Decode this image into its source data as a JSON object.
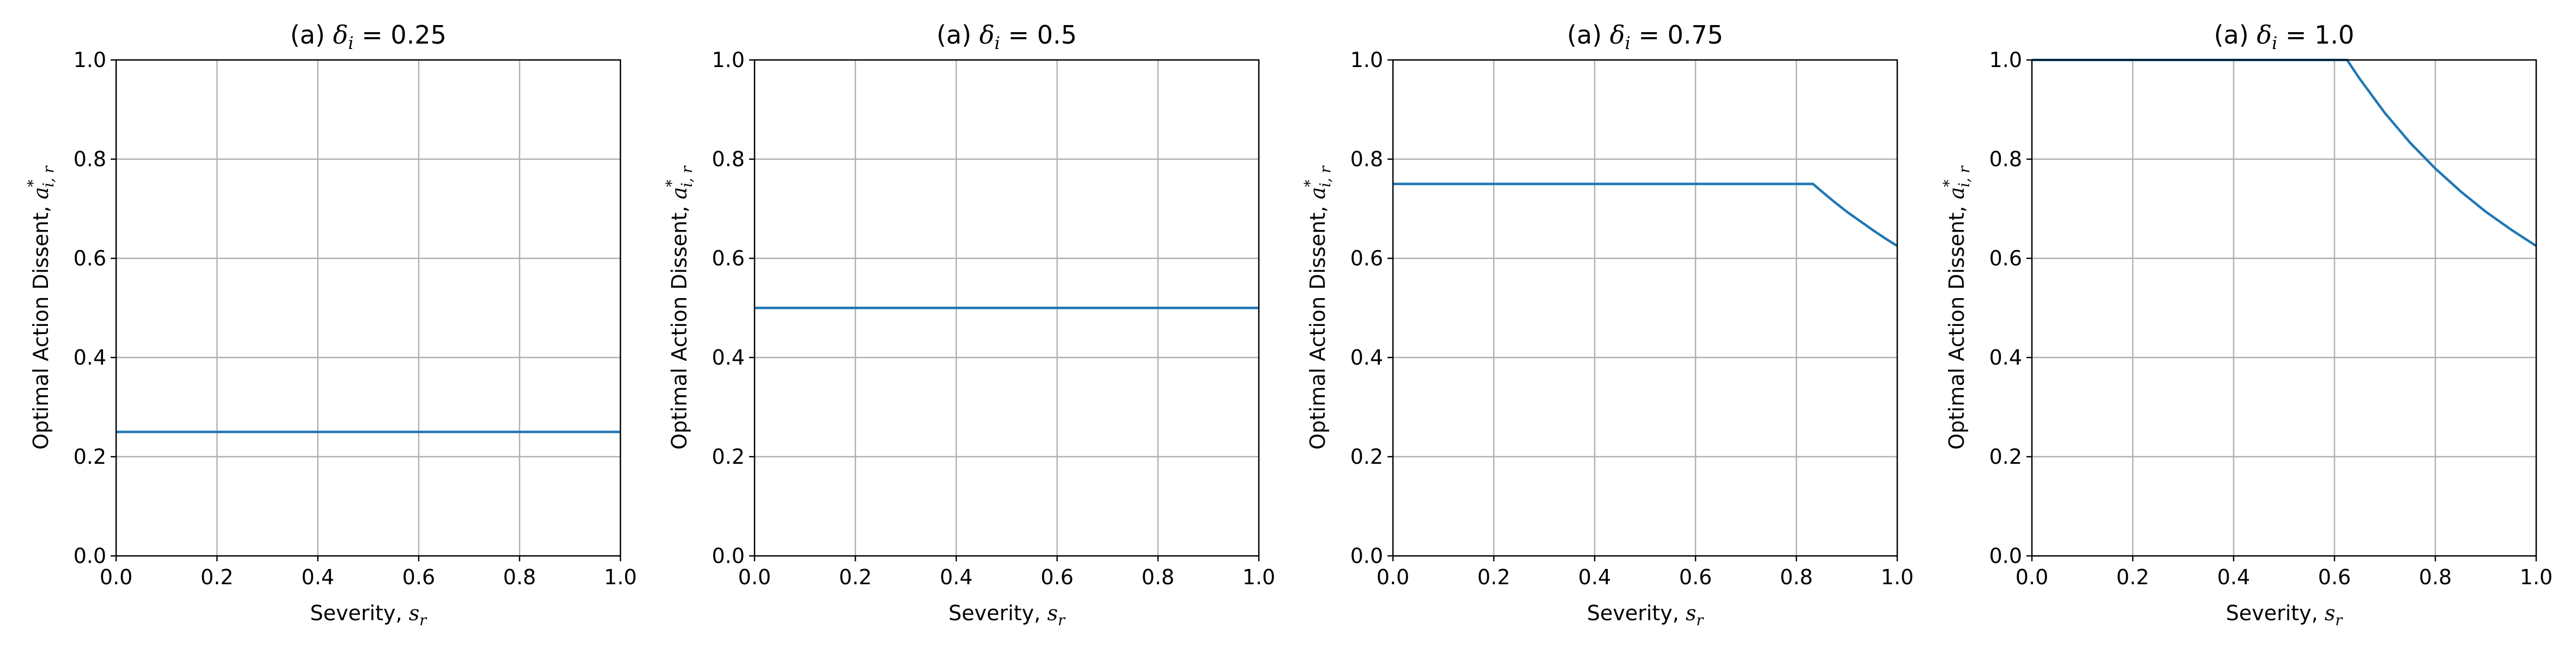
{
  "chart_data": [
    {
      "type": "line",
      "title_prefix": "(a) ",
      "title_symbol": "δ",
      "title_subscript": "i",
      "title_value": " = 0.25",
      "xlabel": "Severity, ",
      "xlabel_symbol": "s",
      "xlabel_subscript": "r",
      "ylabel": "Optimal Action Dissent, ",
      "ylabel_symbol": "a",
      "ylabel_subscript": "i, r",
      "ylabel_superscript": "*",
      "xlim": [
        0,
        1
      ],
      "ylim": [
        0,
        1
      ],
      "xticks": [
        "0.0",
        "0.2",
        "0.4",
        "0.6",
        "0.8",
        "1.0"
      ],
      "yticks": [
        "0.0",
        "0.2",
        "0.4",
        "0.6",
        "0.8",
        "1.0"
      ],
      "grid": true,
      "series": [
        {
          "color": "#1f77b4",
          "x": [
            0.0,
            1.0
          ],
          "y": [
            0.25,
            0.25
          ]
        }
      ]
    },
    {
      "type": "line",
      "title_prefix": "(a) ",
      "title_symbol": "δ",
      "title_subscript": "i",
      "title_value": " = 0.5",
      "xlabel": "Severity, ",
      "xlabel_symbol": "s",
      "xlabel_subscript": "r",
      "ylabel": "Optimal Action Dissent, ",
      "ylabel_symbol": "a",
      "ylabel_subscript": "i, r",
      "ylabel_superscript": "*",
      "xlim": [
        0,
        1
      ],
      "ylim": [
        0,
        1
      ],
      "xticks": [
        "0.0",
        "0.2",
        "0.4",
        "0.6",
        "0.8",
        "1.0"
      ],
      "yticks": [
        "0.0",
        "0.2",
        "0.4",
        "0.6",
        "0.8",
        "1.0"
      ],
      "grid": true,
      "series": [
        {
          "color": "#1f77b4",
          "x": [
            0.0,
            1.0
          ],
          "y": [
            0.5,
            0.5
          ]
        }
      ]
    },
    {
      "type": "line",
      "title_prefix": "(a) ",
      "title_symbol": "δ",
      "title_subscript": "i",
      "title_value": " = 0.75",
      "xlabel": "Severity, ",
      "xlabel_symbol": "s",
      "xlabel_subscript": "r",
      "ylabel": "Optimal Action Dissent, ",
      "ylabel_symbol": "a",
      "ylabel_subscript": "i, r",
      "ylabel_superscript": "*",
      "xlim": [
        0,
        1
      ],
      "ylim": [
        0,
        1
      ],
      "xticks": [
        "0.0",
        "0.2",
        "0.4",
        "0.6",
        "0.8",
        "1.0"
      ],
      "yticks": [
        "0.0",
        "0.2",
        "0.4",
        "0.6",
        "0.8",
        "1.0"
      ],
      "grid": true,
      "series": [
        {
          "color": "#1f77b4",
          "x": [
            0.0,
            0.1,
            0.2,
            0.3,
            0.4,
            0.5,
            0.6,
            0.7,
            0.8,
            0.833,
            0.85,
            0.875,
            0.9,
            0.925,
            0.95,
            0.975,
            1.0
          ],
          "y": [
            0.75,
            0.75,
            0.75,
            0.75,
            0.75,
            0.75,
            0.75,
            0.75,
            0.75,
            0.75,
            0.735,
            0.714,
            0.694,
            0.676,
            0.658,
            0.641,
            0.625
          ]
        }
      ]
    },
    {
      "type": "line",
      "title_prefix": "(a) ",
      "title_symbol": "δ",
      "title_subscript": "i",
      "title_value": " = 1.0",
      "xlabel": "Severity, ",
      "xlabel_symbol": "s",
      "xlabel_subscript": "r",
      "ylabel": "Optimal Action Dissent, ",
      "ylabel_symbol": "a",
      "ylabel_subscript": "i, r",
      "ylabel_superscript": "*",
      "xlim": [
        0,
        1
      ],
      "ylim": [
        0,
        1
      ],
      "xticks": [
        "0.0",
        "0.2",
        "0.4",
        "0.6",
        "0.8",
        "1.0"
      ],
      "yticks": [
        "0.0",
        "0.2",
        "0.4",
        "0.6",
        "0.8",
        "1.0"
      ],
      "grid": true,
      "series": [
        {
          "color": "#1f77b4",
          "x": [
            0.0,
            0.1,
            0.2,
            0.3,
            0.4,
            0.5,
            0.6,
            0.625,
            0.65,
            0.7,
            0.75,
            0.8,
            0.85,
            0.9,
            0.95,
            1.0
          ],
          "y": [
            1.0,
            1.0,
            1.0,
            1.0,
            1.0,
            1.0,
            1.0,
            1.0,
            0.962,
            0.893,
            0.833,
            0.781,
            0.735,
            0.694,
            0.658,
            0.625
          ]
        }
      ]
    }
  ]
}
